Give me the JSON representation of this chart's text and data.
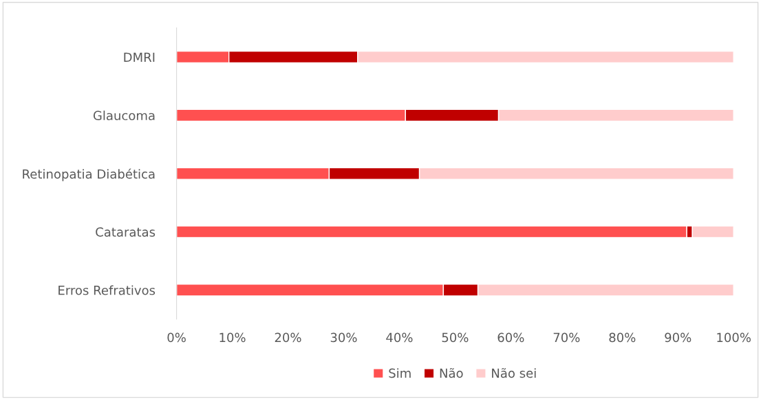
{
  "chart_data": {
    "type": "bar",
    "orientation": "horizontal",
    "stacked": true,
    "categories": [
      "DMRI",
      "Glaucoma",
      "Retinopatia Diabética",
      "Cataratas",
      "Erros Refrativos"
    ],
    "series": [
      {
        "name": "Sim",
        "color": "#ff5050",
        "values": [
          9.4,
          41.1,
          27.4,
          91.6,
          47.9
        ]
      },
      {
        "name": "Não",
        "color": "#c00000",
        "values": [
          23.1,
          16.7,
          16.2,
          1.0,
          6.2
        ]
      },
      {
        "name": "Não sei",
        "color": "#ffcccc",
        "values": [
          67.5,
          42.2,
          56.4,
          7.4,
          45.9
        ]
      }
    ],
    "xlim": [
      0,
      100
    ],
    "xticks": [
      {
        "value": 0,
        "label": "0%"
      },
      {
        "value": 10,
        "label": "10%"
      },
      {
        "value": 20,
        "label": "20%"
      },
      {
        "value": 30,
        "label": "30%"
      },
      {
        "value": 40,
        "label": "40%"
      },
      {
        "value": 50,
        "label": "50%"
      },
      {
        "value": 60,
        "label": "60%"
      },
      {
        "value": 70,
        "label": "70%"
      },
      {
        "value": 80,
        "label": "80%"
      },
      {
        "value": 90,
        "label": "90%"
      },
      {
        "value": 100,
        "label": "100%"
      }
    ],
    "grid": false,
    "legend": "bottom"
  }
}
